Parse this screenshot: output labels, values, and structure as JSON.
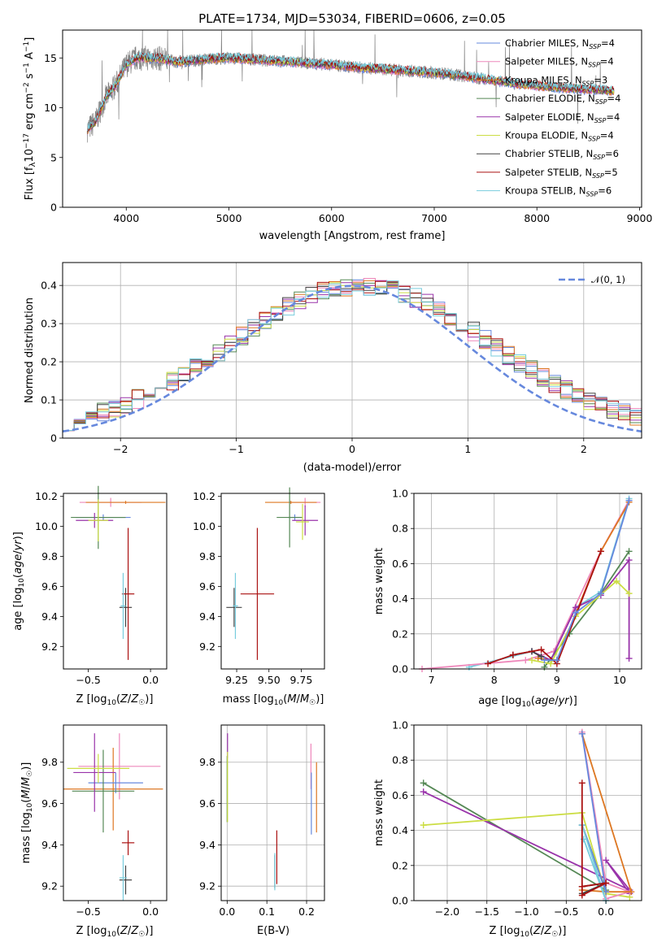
{
  "figure": {
    "title": "PLATE=1734, MJD=53034, FIBERID=0606, z=0.05"
  },
  "chart_data": [
    {
      "id": "spectrum",
      "type": "line",
      "xlabel": "wavelength [Angstrom, rest frame]",
      "ylabel": "Flux [f_λ 10^-17 erg cm^-2 s^-1 A^-1]",
      "xlim": [
        3380,
        9020
      ],
      "ylim": [
        0,
        17.8
      ],
      "xticks": [
        4000,
        5000,
        6000,
        7000,
        8000,
        9000
      ],
      "yticks": [
        0,
        5,
        10,
        15
      ],
      "grid": false,
      "legend_position": "top-right",
      "observed_color": "#808080",
      "continuum": {
        "x": [
          3620,
          3700,
          3800,
          3900,
          4000,
          4100,
          4300,
          4500,
          4800,
          5000,
          5300,
          5600,
          6000,
          6300,
          6600,
          6900,
          7200,
          7400,
          7600,
          7800,
          8000,
          8200,
          8400,
          8600,
          8750
        ],
        "y": [
          7.8,
          8.6,
          11.0,
          12.3,
          14.3,
          15.0,
          15.0,
          14.6,
          14.9,
          15.0,
          14.8,
          14.6,
          14.3,
          14.0,
          13.8,
          13.6,
          13.3,
          13.0,
          12.7,
          12.4,
          12.2,
          12.0,
          11.9,
          11.8,
          11.7
        ]
      },
      "series": [
        {
          "name": "Chabrier MILES, N_SSP=4",
          "color": "#6688dd"
        },
        {
          "name": "Salpeter MILES, N_SSP=4",
          "color": "#ee88bb"
        },
        {
          "name": "Kroupa MILES, N_SSP=3",
          "color": "#dd7722"
        },
        {
          "name": "Chabrier ELODIE, N_SSP=4",
          "color": "#558855"
        },
        {
          "name": "Salpeter ELODIE, N_SSP=4",
          "color": "#9933aa"
        },
        {
          "name": "Kroupa ELODIE, N_SSP=4",
          "color": "#ccdd44"
        },
        {
          "name": "Chabrier STELIB, N_SSP=6",
          "color": "#444444"
        },
        {
          "name": "Salpeter STELIB, N_SSP=5",
          "color": "#aa1111"
        },
        {
          "name": "Kroupa STELIB, N_SSP=6",
          "color": "#77ccdd"
        }
      ]
    },
    {
      "id": "residuals",
      "type": "line",
      "xlabel": "(data-model)/error",
      "ylabel": "Normed distribution",
      "xlim": [
        -2.5,
        2.5
      ],
      "ylim": [
        0,
        0.46
      ],
      "xticks": [
        -2,
        -1,
        0,
        1,
        2
      ],
      "yticks": [
        0.0,
        0.1,
        0.2,
        0.3,
        0.4
      ],
      "grid": true,
      "legend_position": "top-right",
      "reference_curve": {
        "name": "𝒩(0, 1)",
        "color": "#6688dd",
        "style": "dashed",
        "mean": 0,
        "sigma": 1
      },
      "bin_width": 0.1,
      "series_colors": [
        "#6688dd",
        "#ee88bb",
        "#dd7722",
        "#558855",
        "#9933aa",
        "#ccdd44",
        "#444444",
        "#aa1111",
        "#77ccdd"
      ]
    },
    {
      "id": "age-vs-Z",
      "type": "scatter",
      "xlabel": "Z [log10(Z/Z☉)]",
      "ylabel": "age  [log10(age/yr)]",
      "xlim": [
        -0.7,
        0.13
      ],
      "ylim": [
        9.05,
        10.22
      ],
      "xticks": [
        -0.5,
        0.0
      ],
      "xticklabels": [
        "−0.5",
        "0.0"
      ],
      "yticks": [
        9.2,
        9.4,
        9.6,
        9.8,
        10.0,
        10.2
      ],
      "yticklabels": [
        "9.2",
        "9.4",
        "9.6",
        "9.8",
        "10.0",
        "10.2"
      ],
      "grid": false,
      "points": [
        {
          "x": -0.32,
          "y": 10.16,
          "xerr": 0.25,
          "yerr": 0.03,
          "color": "#ee88bb"
        },
        {
          "x": -0.2,
          "y": 10.16,
          "xerr": 0.32,
          "yerr": 0.01,
          "color": "#dd7722"
        },
        {
          "x": -0.38,
          "y": 10.06,
          "xerr": 0.22,
          "yerr": 0.02,
          "color": "#6688dd"
        },
        {
          "x": -0.42,
          "y": 10.06,
          "xerr": 0.22,
          "yerr": 0.21,
          "color": "#558855"
        },
        {
          "x": -0.45,
          "y": 10.04,
          "xerr": 0.15,
          "yerr": 0.05,
          "color": "#9933aa"
        },
        {
          "x": -0.42,
          "y": 10.04,
          "xerr": 0.08,
          "yerr": 0.14,
          "color": "#ccdd44"
        },
        {
          "x": -0.2,
          "y": 9.46,
          "xerr": 0.05,
          "yerr": 0.13,
          "color": "#444444"
        },
        {
          "x": -0.18,
          "y": 9.55,
          "xerr": 0.05,
          "yerr": 0.44,
          "color": "#aa1111"
        },
        {
          "x": -0.22,
          "y": 9.47,
          "xerr": 0.02,
          "yerr": 0.22,
          "color": "#77ccdd"
        }
      ]
    },
    {
      "id": "age-vs-mass",
      "type": "scatter",
      "xlabel": "mass [log10(M/M☉)]",
      "ylabel": "",
      "xlim": [
        9.13,
        9.93
      ],
      "ylim": [
        9.05,
        10.22
      ],
      "xticks": [
        9.25,
        9.5,
        9.75
      ],
      "xticklabels": [
        "9.25",
        "9.50",
        "9.75"
      ],
      "yticks": [
        9.2,
        9.4,
        9.6,
        9.8,
        10.0,
        10.2
      ],
      "yticklabels": [
        "9.2",
        "9.4",
        "9.6",
        "9.8",
        "10.0",
        "10.2"
      ],
      "grid": false,
      "points": [
        {
          "x": 9.78,
          "y": 10.16,
          "xerr": 0.12,
          "yerr": 0.03,
          "color": "#ee88bb"
        },
        {
          "x": 9.67,
          "y": 10.16,
          "xerr": 0.2,
          "yerr": 0.01,
          "color": "#dd7722"
        },
        {
          "x": 9.7,
          "y": 10.06,
          "xerr": 0.05,
          "yerr": 0.02,
          "color": "#6688dd"
        },
        {
          "x": 9.66,
          "y": 10.06,
          "xerr": 0.1,
          "yerr": 0.2,
          "color": "#558855"
        },
        {
          "x": 9.78,
          "y": 10.04,
          "xerr": 0.1,
          "yerr": 0.1,
          "color": "#9933aa"
        },
        {
          "x": 9.76,
          "y": 10.03,
          "xerr": 0.05,
          "yerr": 0.12,
          "color": "#ccdd44"
        },
        {
          "x": 9.23,
          "y": 9.46,
          "xerr": 0.06,
          "yerr": 0.13,
          "color": "#444444"
        },
        {
          "x": 9.41,
          "y": 9.55,
          "xerr": 0.13,
          "yerr": 0.44,
          "color": "#aa1111"
        },
        {
          "x": 9.24,
          "y": 9.47,
          "xerr": 0.02,
          "yerr": 0.22,
          "color": "#77ccdd"
        }
      ]
    },
    {
      "id": "mass-weight-vs-age",
      "type": "line",
      "xlabel": "age  [log10(age/yr)]",
      "ylabel": "mass weight",
      "xlim": [
        6.72,
        10.35
      ],
      "ylim": [
        0,
        1.0
      ],
      "xticks": [
        7,
        8,
        9,
        10
      ],
      "xticklabels": [
        "7",
        "8",
        "9",
        "10"
      ],
      "yticks": [
        0.0,
        0.2,
        0.4,
        0.6,
        0.8,
        1.0
      ],
      "yticklabels": [
        "0.0",
        "0.2",
        "0.4",
        "0.6",
        "0.8",
        "1.0"
      ],
      "grid": true,
      "series": [
        {
          "color": "#77ccdd",
          "x": [
            7.6,
            8.6,
            8.9,
            9.3,
            9.7,
            10.15
          ],
          "y": [
            0.01,
            0.1,
            0.05,
            0.35,
            0.44,
            0.97
          ]
        },
        {
          "color": "#ee88bb",
          "x": [
            6.85,
            8.5,
            8.95,
            9.7,
            10.15
          ],
          "y": [
            0.0,
            0.05,
            0.1,
            0.67,
            0.96
          ]
        },
        {
          "color": "#dd7722",
          "x": [
            8.7,
            9.0,
            9.7,
            10.15
          ],
          "y": [
            0.06,
            0.05,
            0.67,
            0.95
          ]
        },
        {
          "color": "#558855",
          "x": [
            8.8,
            9.2,
            9.7,
            10.15
          ],
          "y": [
            0.01,
            0.2,
            0.43,
            0.67
          ]
        },
        {
          "color": "#9933aa",
          "x": [
            8.6,
            8.9,
            9.3,
            9.7,
            10.15,
            10.15
          ],
          "y": [
            0.1,
            0.05,
            0.35,
            0.42,
            0.62,
            0.06
          ]
        },
        {
          "color": "#ccdd44",
          "x": [
            8.6,
            8.9,
            9.3,
            9.95,
            10.15
          ],
          "y": [
            0.05,
            0.03,
            0.3,
            0.5,
            0.43
          ]
        },
        {
          "color": "#444444",
          "x": [
            8.3,
            8.6,
            8.75
          ],
          "y": [
            0.08,
            0.1,
            0.07
          ]
        },
        {
          "color": "#aa1111",
          "x": [
            7.9,
            8.3,
            8.75,
            9.0,
            9.7
          ],
          "y": [
            0.03,
            0.08,
            0.11,
            0.03,
            0.67
          ]
        },
        {
          "color": "#6688dd",
          "x": [
            8.8,
            9.0,
            9.3,
            9.7,
            10.15
          ],
          "y": [
            0.05,
            0.05,
            0.32,
            0.43,
            0.96
          ]
        }
      ]
    },
    {
      "id": "mass-vs-Z",
      "type": "scatter",
      "xlabel": "Z [log10(Z/Z☉)]",
      "ylabel": "mass [log10(M/M☉)]",
      "xlim": [
        -0.7,
        0.13
      ],
      "ylim": [
        9.13,
        9.98
      ],
      "xticks": [
        -0.5,
        0.0
      ],
      "xticklabels": [
        "−0.5",
        "0.0"
      ],
      "yticks": [
        9.2,
        9.4,
        9.6,
        9.8
      ],
      "yticklabels": [
        "9.2",
        "9.4",
        "9.6",
        "9.8"
      ],
      "grid": false,
      "points": [
        {
          "x": -0.25,
          "y": 9.78,
          "xerr": 0.33,
          "yerr": 0.16,
          "color": "#ee88bb"
        },
        {
          "x": -0.3,
          "y": 9.67,
          "xerr": 0.4,
          "yerr": 0.2,
          "color": "#dd7722"
        },
        {
          "x": -0.28,
          "y": 9.7,
          "xerr": 0.22,
          "yerr": 0.05,
          "color": "#6688dd"
        },
        {
          "x": -0.38,
          "y": 9.66,
          "xerr": 0.25,
          "yerr": 0.2,
          "color": "#558855"
        },
        {
          "x": -0.45,
          "y": 9.75,
          "xerr": 0.17,
          "yerr": 0.19,
          "color": "#9933aa"
        },
        {
          "x": -0.42,
          "y": 9.77,
          "xerr": 0.25,
          "yerr": 0.07,
          "color": "#ccdd44"
        },
        {
          "x": -0.2,
          "y": 9.23,
          "xerr": 0.05,
          "yerr": 0.07,
          "color": "#444444"
        },
        {
          "x": -0.18,
          "y": 9.41,
          "xerr": 0.05,
          "yerr": 0.06,
          "color": "#aa1111"
        },
        {
          "x": -0.22,
          "y": 9.24,
          "xerr": 0.03,
          "yerr": 0.11,
          "color": "#77ccdd"
        }
      ]
    },
    {
      "id": "mass-vs-EBV",
      "type": "scatter",
      "xlabel": "E(B-V)",
      "ylabel": "",
      "xlim": [
        -0.015,
        0.245
      ],
      "ylim": [
        9.13,
        9.98
      ],
      "xticks": [
        0.0,
        0.1,
        0.2
      ],
      "xticklabels": [
        "0.0",
        "0.1",
        "0.2"
      ],
      "yticks": [
        9.2,
        9.4,
        9.6,
        9.8
      ],
      "yticklabels": [
        "9.2",
        "9.4",
        "9.6",
        "9.8"
      ],
      "grid": true,
      "points": [
        {
          "x": 0.211,
          "y": 9.78,
          "xerr": 0,
          "yerr": 0.11,
          "color": "#ee88bb"
        },
        {
          "x": 0.225,
          "y": 9.63,
          "xerr": 0,
          "yerr": 0.17,
          "color": "#dd7722"
        },
        {
          "x": 0.212,
          "y": 9.6,
          "xerr": 0,
          "yerr": 0.15,
          "color": "#6688dd"
        },
        {
          "x": 0.0,
          "y": 9.67,
          "xerr": 0,
          "yerr": 0.16,
          "color": "#558855"
        },
        {
          "x": 0.001,
          "y": 9.88,
          "xerr": 0,
          "yerr": 0.06,
          "color": "#9933aa"
        },
        {
          "x": 0.001,
          "y": 9.68,
          "xerr": 0,
          "yerr": 0.17,
          "color": "#ccdd44"
        },
        {
          "x": 0.12,
          "y": 9.27,
          "xerr": 0,
          "yerr": 0.08,
          "color": "#444444"
        },
        {
          "x": 0.125,
          "y": 9.34,
          "xerr": 0,
          "yerr": 0.13,
          "color": "#aa1111"
        },
        {
          "x": 0.12,
          "y": 9.27,
          "xerr": 0,
          "yerr": 0.09,
          "color": "#77ccdd"
        }
      ]
    },
    {
      "id": "mass-weight-vs-Z",
      "type": "line",
      "xlabel": "Z [log10(Z/Z☉)]",
      "ylabel": "mass weight",
      "xlim": [
        -2.42,
        0.45
      ],
      "ylim": [
        0,
        1.0
      ],
      "xticks": [
        -2.0,
        -1.5,
        -1.0,
        -0.5,
        0.0
      ],
      "xticklabels": [
        "−2.0",
        "−1.5",
        "−1.0",
        "−0.5",
        "0.0"
      ],
      "yticks": [
        0.0,
        0.2,
        0.4,
        0.6,
        0.8,
        1.0
      ],
      "yticklabels": [
        "0.0",
        "0.2",
        "0.4",
        "0.6",
        "0.8",
        "1.0"
      ],
      "grid": true,
      "series": [
        {
          "color": "#558855",
          "x": [
            -2.3,
            0.0,
            -0.3,
            0.0
          ],
          "y": [
            0.67,
            0.06,
            0.43,
            0.05
          ]
        },
        {
          "color": "#9933aa",
          "x": [
            -2.3,
            0.3,
            0.0,
            0.3
          ],
          "y": [
            0.62,
            0.06,
            0.23,
            0.04
          ]
        },
        {
          "color": "#ccdd44",
          "x": [
            -2.3,
            -0.3,
            0.0,
            0.3
          ],
          "y": [
            0.43,
            0.5,
            0.04,
            0.02
          ]
        },
        {
          "color": "#ee88bb",
          "x": [
            -0.3,
            0.0,
            0.3,
            0.0
          ],
          "y": [
            0.96,
            0.1,
            0.05,
            0.01
          ]
        },
        {
          "color": "#dd7722",
          "x": [
            -0.3,
            0.32,
            0.0,
            -0.3
          ],
          "y": [
            0.95,
            0.05,
            0.05,
            0.06
          ]
        },
        {
          "color": "#6688dd",
          "x": [
            -0.3,
            0.0,
            -0.3
          ],
          "y": [
            0.95,
            0.05,
            0.43
          ]
        },
        {
          "color": "#77ccdd",
          "x": [
            -0.3,
            0.0,
            -0.28
          ],
          "y": [
            0.43,
            0.0,
            0.35
          ]
        },
        {
          "color": "#444444",
          "x": [
            -0.3,
            0.0,
            -0.3
          ],
          "y": [
            0.08,
            0.1,
            0.04
          ]
        },
        {
          "color": "#aa1111",
          "x": [
            -0.3,
            -0.3,
            0.0,
            -0.3
          ],
          "y": [
            0.67,
            0.03,
            0.1,
            0.08
          ]
        }
      ]
    }
  ]
}
